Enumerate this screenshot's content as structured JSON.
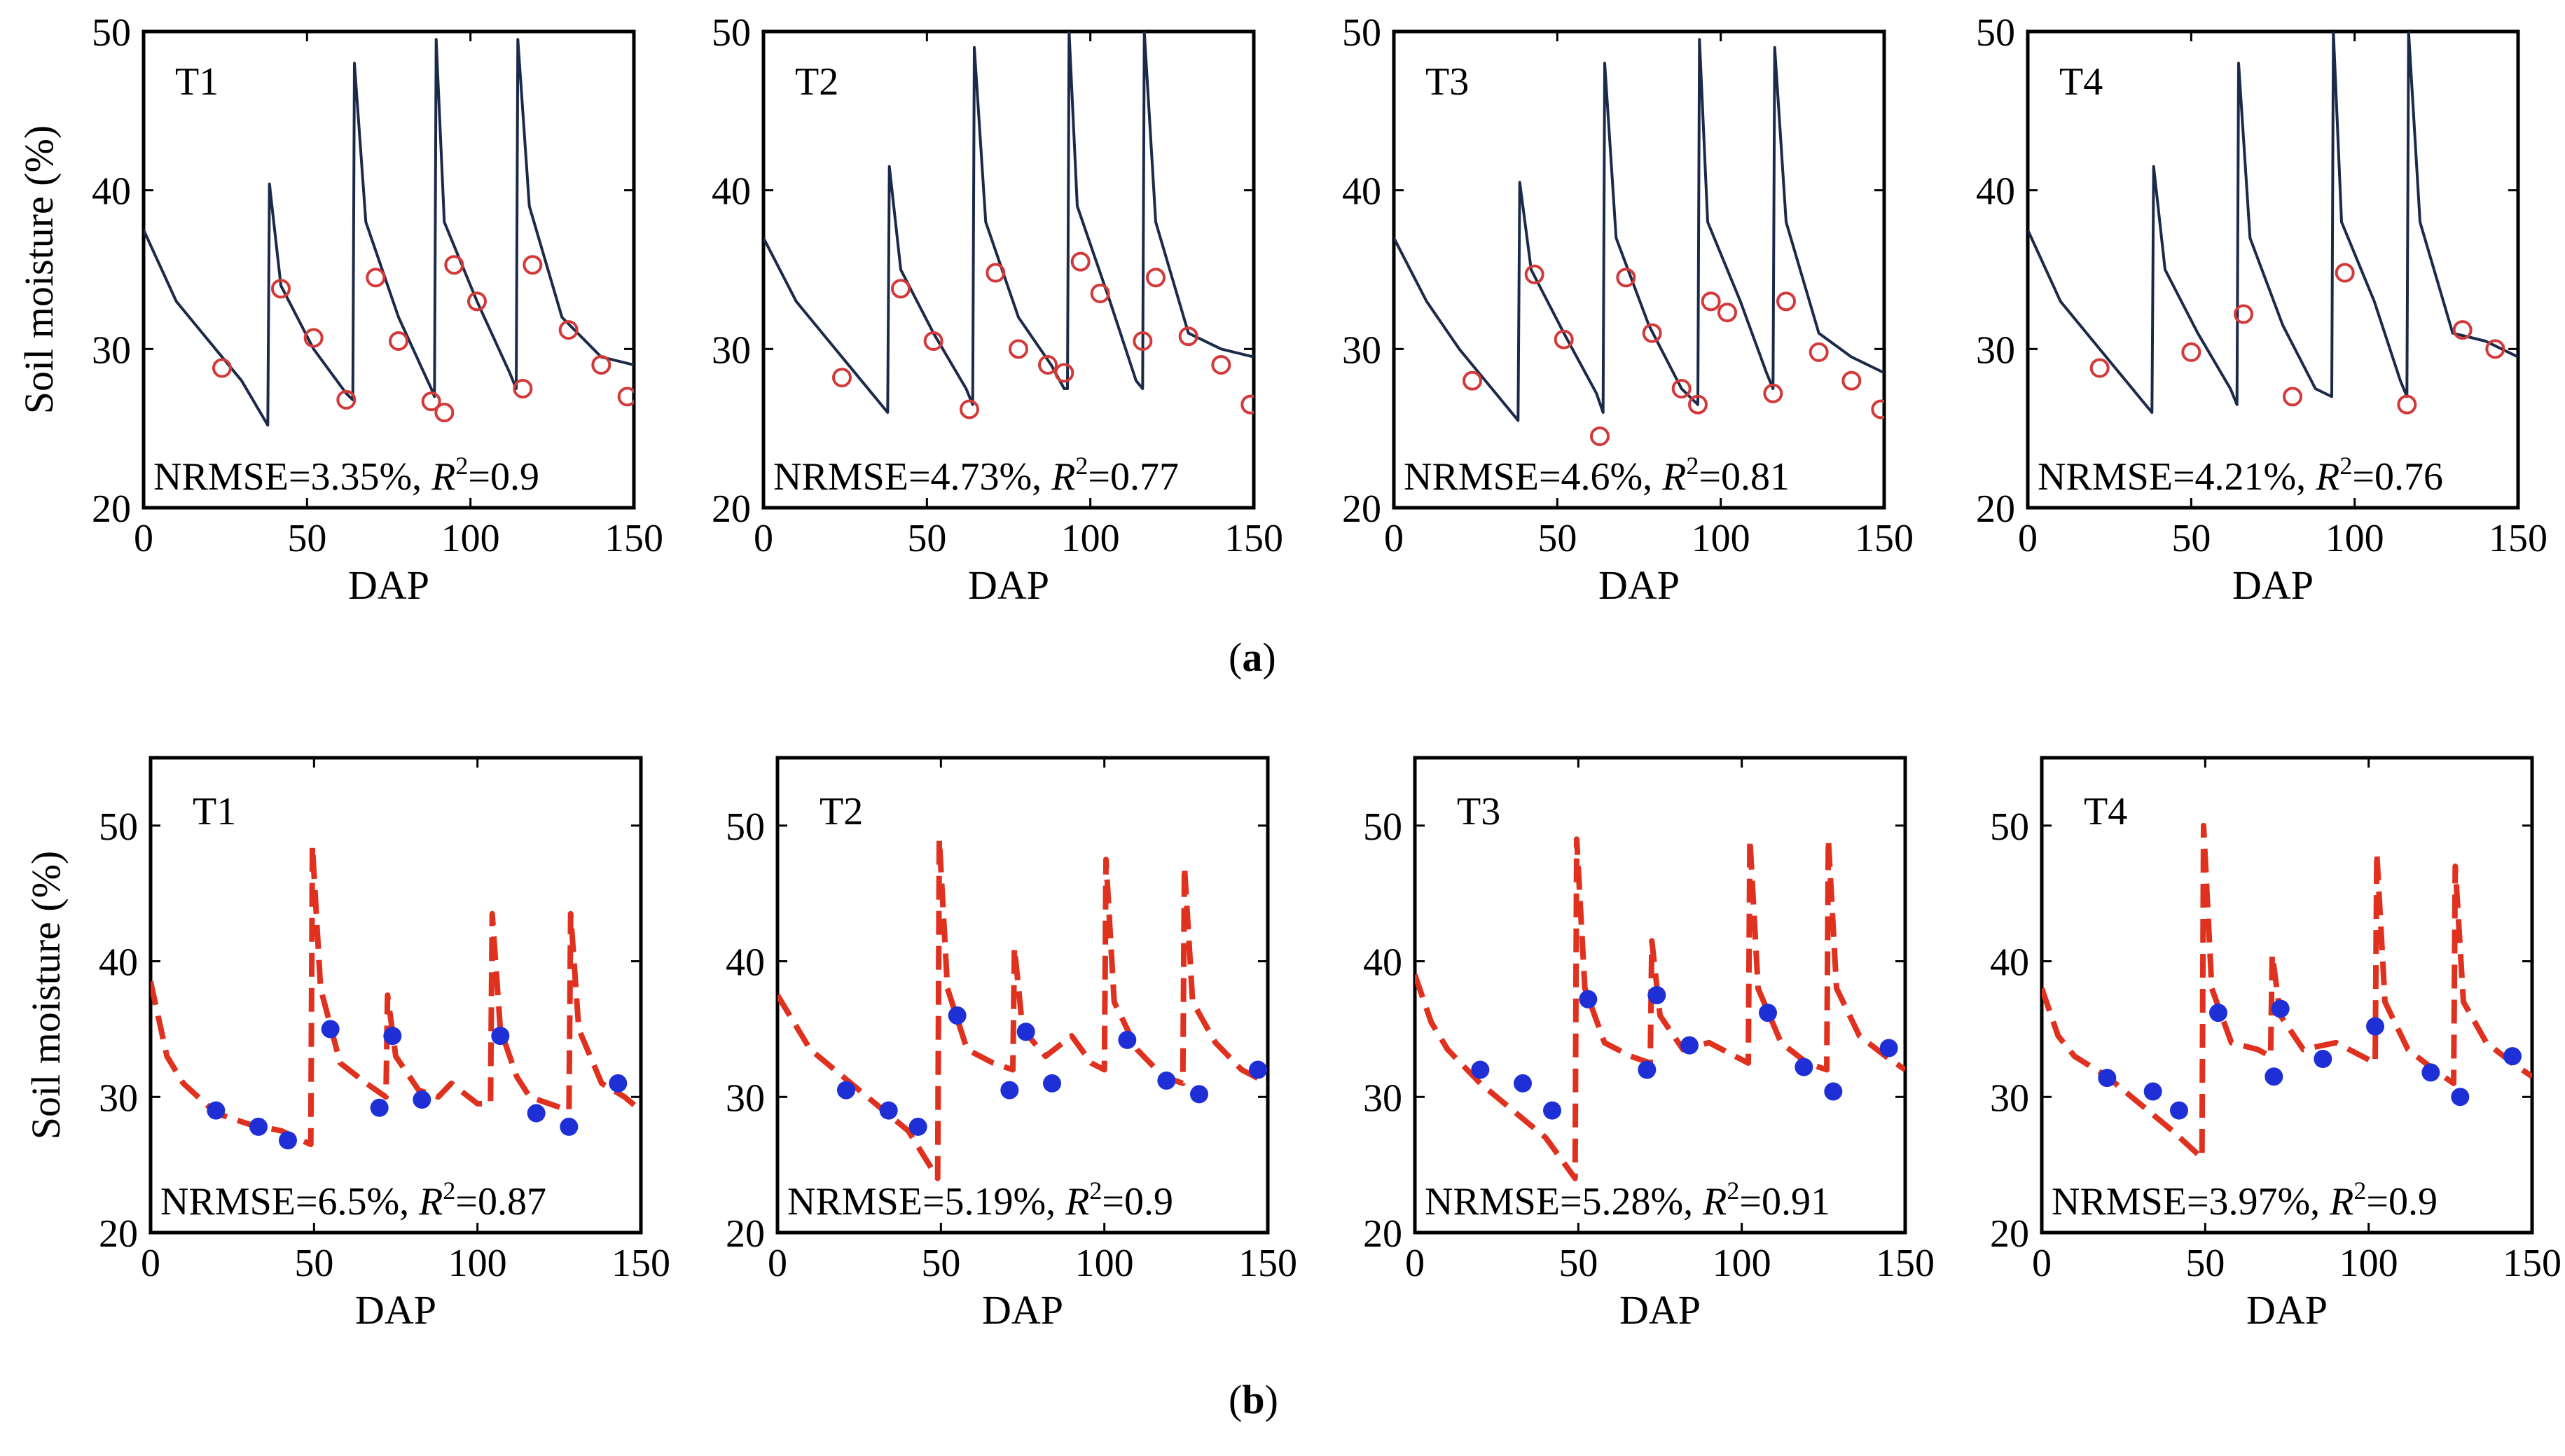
{
  "figure": {
    "caption_a": "a",
    "caption_b": "b",
    "ylabel": "Soil moisture (%)",
    "xlabel": "DAP"
  },
  "colors": {
    "simulated_line_a": "#1c2a4a",
    "observed_marker_a": "#d23a3a",
    "simulated_line_b": "#e0301e",
    "observed_marker_b": "#1f2fd6"
  },
  "chart_data": [
    {
      "type": "line",
      "row": "a",
      "panel_label": "T1",
      "annotation": "NRMSE=3.35%, R²=0.9",
      "xlim": [
        0,
        150
      ],
      "ylim": [
        20,
        50
      ],
      "xticks": [
        0,
        50,
        100,
        150
      ],
      "yticks": [
        20,
        30,
        40,
        50
      ],
      "series": [
        {
          "role": "simulated",
          "style": "solid",
          "x": [
            0,
            10,
            20,
            30,
            38,
            38.5,
            42,
            52,
            62,
            64,
            64.5,
            68,
            78,
            88,
            89,
            89.5,
            92,
            102,
            112,
            114,
            114.5,
            118,
            128,
            140,
            150
          ],
          "y": [
            37.5,
            33,
            30.5,
            28,
            25.2,
            40.4,
            34,
            30,
            27.2,
            26.8,
            48,
            38,
            32,
            27.5,
            27,
            49.5,
            38,
            33,
            28.5,
            27.5,
            49.5,
            39,
            32,
            29.5,
            29
          ]
        },
        {
          "role": "observed",
          "style": "open-circle",
          "x": [
            24,
            42,
            52,
            62,
            71,
            78,
            88,
            92,
            95,
            102,
            116,
            119,
            130,
            140,
            148
          ],
          "y": [
            28.8,
            33.8,
            30.7,
            26.8,
            34.5,
            30.5,
            26.7,
            26,
            35.3,
            33,
            27.5,
            35.3,
            31.2,
            29,
            27
          ]
        }
      ]
    },
    {
      "type": "line",
      "row": "a",
      "panel_label": "T2",
      "annotation": "NRMSE=4.73%, R²=0.77",
      "xlim": [
        0,
        150
      ],
      "ylim": [
        20,
        50
      ],
      "xticks": [
        0,
        50,
        100,
        150
      ],
      "yticks": [
        20,
        30,
        40,
        50
      ],
      "series": [
        {
          "role": "simulated",
          "style": "solid",
          "x": [
            0,
            10,
            20,
            30,
            38,
            38.5,
            42,
            52,
            62,
            64,
            64.5,
            68,
            78,
            88,
            92,
            93,
            93.5,
            96,
            106,
            114,
            116,
            116.5,
            120,
            130,
            140,
            150
          ],
          "y": [
            37,
            33,
            30.5,
            28,
            26,
            41.5,
            35,
            31,
            27.5,
            26.5,
            49,
            38,
            32,
            29,
            27.5,
            27.5,
            50,
            39,
            33,
            28,
            27.5,
            50,
            38,
            31,
            30,
            29.5
          ]
        },
        {
          "role": "observed",
          "style": "open-circle",
          "x": [
            24,
            42,
            52,
            63,
            71,
            78,
            87,
            92,
            97,
            103,
            116,
            120,
            130,
            140,
            149
          ],
          "y": [
            28.2,
            33.8,
            30.5,
            26.2,
            34.8,
            30,
            29,
            28.5,
            35.5,
            33.5,
            30.5,
            34.5,
            30.8,
            29,
            26.5
          ]
        }
      ]
    },
    {
      "type": "line",
      "row": "a",
      "panel_label": "T3",
      "annotation": "NRMSE=4.6%, R²=0.81",
      "xlim": [
        0,
        150
      ],
      "ylim": [
        20,
        50
      ],
      "xticks": [
        0,
        50,
        100,
        150
      ],
      "yticks": [
        20,
        30,
        40,
        50
      ],
      "series": [
        {
          "role": "simulated",
          "style": "solid",
          "x": [
            0,
            10,
            20,
            30,
            38,
            38.5,
            42,
            52,
            62,
            64,
            64.5,
            68,
            78,
            88,
            93,
            93.5,
            96,
            106,
            114,
            116,
            116.5,
            120,
            130,
            140,
            150
          ],
          "y": [
            37,
            33,
            30,
            27.5,
            25.5,
            40.5,
            35,
            31,
            27.2,
            26,
            48,
            37,
            31.5,
            27.5,
            26.5,
            49.5,
            38,
            33,
            28.5,
            27.5,
            49,
            38,
            31,
            29.5,
            28.5
          ]
        },
        {
          "role": "observed",
          "style": "open-circle",
          "x": [
            24,
            43,
            52,
            63,
            71,
            79,
            88,
            93,
            97,
            102,
            116,
            120,
            130,
            140,
            149
          ],
          "y": [
            28,
            34.7,
            30.6,
            24.5,
            34.5,
            31,
            27.5,
            26.5,
            33,
            32.3,
            27.2,
            33,
            29.8,
            28,
            26.2
          ]
        }
      ]
    },
    {
      "type": "line",
      "row": "a",
      "panel_label": "T4",
      "annotation": "NRMSE=4.21%, R²=0.76",
      "xlim": [
        0,
        150
      ],
      "ylim": [
        20,
        50
      ],
      "xticks": [
        0,
        50,
        100,
        150
      ],
      "yticks": [
        20,
        30,
        40,
        50
      ],
      "series": [
        {
          "role": "simulated",
          "style": "solid",
          "x": [
            0,
            10,
            20,
            30,
            38,
            38.5,
            42,
            52,
            62,
            64,
            64.5,
            68,
            78,
            88,
            93,
            93.5,
            96,
            106,
            114,
            116,
            116.5,
            120,
            130,
            140,
            150
          ],
          "y": [
            37.5,
            33,
            30.5,
            28,
            26,
            41.5,
            35,
            31,
            27.5,
            26.5,
            48,
            37,
            31.5,
            27.5,
            27,
            50,
            38,
            33,
            28,
            27,
            50,
            38,
            31,
            30.5,
            29.5
          ]
        },
        {
          "role": "observed",
          "style": "open-circle",
          "x": [
            22,
            50,
            66,
            81,
            97,
            116,
            133,
            143
          ],
          "y": [
            28.8,
            29.8,
            32.2,
            27,
            34.8,
            26.5,
            31.2,
            30
          ]
        }
      ]
    },
    {
      "type": "line",
      "row": "b",
      "panel_label": "T1",
      "annotation": "NRMSE=6.5%, R²=0.87",
      "xlim": [
        0,
        150
      ],
      "ylim": [
        20,
        55
      ],
      "xticks": [
        0,
        50,
        100,
        150
      ],
      "yticks": [
        20,
        30,
        40,
        50
      ],
      "series": [
        {
          "role": "simulated",
          "style": "dashed",
          "x": [
            0,
            5,
            10,
            20,
            30,
            40,
            49,
            49.5,
            52,
            58,
            66,
            72,
            72.5,
            75,
            82,
            88,
            92,
            100,
            104,
            104.5,
            107,
            112,
            116,
            122,
            128,
            128.5,
            131,
            138,
            145,
            150
          ],
          "y": [
            38.5,
            33,
            31,
            28.8,
            28,
            27.5,
            26.5,
            48.5,
            38,
            32.5,
            31,
            30,
            37.5,
            33,
            30.5,
            30,
            31,
            29.5,
            29.5,
            43.5,
            35,
            31.5,
            30,
            29.5,
            29,
            43.5,
            35,
            31,
            30,
            29
          ]
        },
        {
          "role": "observed",
          "style": "filled-circle",
          "x": [
            20,
            33,
            42,
            55,
            70,
            74,
            83,
            107,
            118,
            128,
            143
          ],
          "y": [
            29,
            27.8,
            26.8,
            35,
            29.2,
            34.5,
            29.8,
            34.5,
            28.8,
            27.8,
            31
          ]
        }
      ]
    },
    {
      "type": "line",
      "row": "b",
      "panel_label": "T2",
      "annotation": "NRMSE=5.19%, R²=0.9",
      "xlim": [
        0,
        150
      ],
      "ylim": [
        20,
        55
      ],
      "xticks": [
        0,
        50,
        100,
        150
      ],
      "yticks": [
        20,
        30,
        40,
        50
      ],
      "series": [
        {
          "role": "simulated",
          "style": "dashed",
          "x": [
            0,
            10,
            20,
            30,
            40,
            49,
            49.5,
            52,
            58,
            66,
            72,
            72.5,
            75,
            82,
            90,
            96,
            100,
            100.5,
            103,
            110,
            118,
            124,
            124.5,
            127,
            134,
            142,
            150
          ],
          "y": [
            37.5,
            33.5,
            31.5,
            29.5,
            27.5,
            24,
            49,
            38,
            33.5,
            32.5,
            32,
            41,
            35,
            33,
            34.5,
            32.5,
            32,
            47.5,
            37,
            33.5,
            31.5,
            31,
            47,
            37,
            34,
            32,
            31
          ]
        },
        {
          "role": "observed",
          "style": "filled-circle",
          "x": [
            21,
            34,
            43,
            55,
            71,
            76,
            84,
            107,
            119,
            129,
            147
          ],
          "y": [
            30.5,
            29,
            27.8,
            36,
            30.5,
            34.8,
            31,
            34.2,
            31.2,
            30.2,
            32
          ]
        }
      ]
    },
    {
      "type": "line",
      "row": "b",
      "panel_label": "T3",
      "annotation": "NRMSE=5.28%, R²=0.91",
      "xlim": [
        0,
        150
      ],
      "ylim": [
        20,
        55
      ],
      "xticks": [
        0,
        50,
        100,
        150
      ],
      "yticks": [
        20,
        30,
        40,
        50
      ],
      "series": [
        {
          "role": "simulated",
          "style": "dashed",
          "x": [
            0,
            5,
            10,
            20,
            30,
            40,
            49,
            49.5,
            52,
            58,
            66,
            72,
            72.5,
            75,
            82,
            90,
            98,
            102,
            102.5,
            105,
            112,
            120,
            126,
            126.5,
            129,
            136,
            144,
            150
          ],
          "y": [
            39,
            35.5,
            33.5,
            31,
            29,
            27,
            24,
            49,
            38,
            34,
            33,
            32.5,
            41.5,
            36,
            33.5,
            34,
            33,
            32.5,
            49,
            38,
            34,
            32.5,
            32,
            49,
            38,
            34.5,
            33,
            32
          ]
        },
        {
          "role": "observed",
          "style": "filled-circle",
          "x": [
            20,
            33,
            42,
            53,
            71,
            74,
            84,
            108,
            119,
            128,
            145
          ],
          "y": [
            32,
            31,
            29,
            37.2,
            32,
            37.5,
            33.8,
            36.2,
            32.2,
            30.4,
            33.6
          ]
        }
      ]
    },
    {
      "type": "line",
      "row": "b",
      "panel_label": "T4",
      "annotation": "NRMSE=3.97%, R²=0.9",
      "xlim": [
        0,
        150
      ],
      "ylim": [
        20,
        55
      ],
      "xticks": [
        0,
        50,
        100,
        150
      ],
      "yticks": [
        20,
        30,
        40,
        50
      ],
      "series": [
        {
          "role": "simulated",
          "style": "dashed",
          "x": [
            0,
            5,
            10,
            20,
            30,
            40,
            49,
            49.5,
            52,
            58,
            66,
            70,
            70.5,
            73,
            80,
            90,
            98,
            102,
            102.5,
            105,
            112,
            120,
            126,
            126.5,
            129,
            136,
            144,
            150
          ],
          "y": [
            38,
            34.5,
            33,
            31.5,
            29.5,
            27.5,
            25.5,
            50,
            38,
            34,
            33.5,
            33,
            40.5,
            36,
            33.5,
            34,
            33,
            32.5,
            48,
            37,
            33.5,
            32,
            31,
            47,
            37,
            34,
            32.5,
            31.5
          ]
        },
        {
          "role": "observed",
          "style": "filled-circle",
          "x": [
            20,
            34,
            42,
            54,
            71,
            73,
            86,
            102,
            119,
            128,
            144
          ],
          "y": [
            31.4,
            30.4,
            29,
            36.2,
            31.5,
            36.5,
            32.8,
            35.2,
            31.8,
            30,
            33
          ]
        }
      ]
    }
  ]
}
